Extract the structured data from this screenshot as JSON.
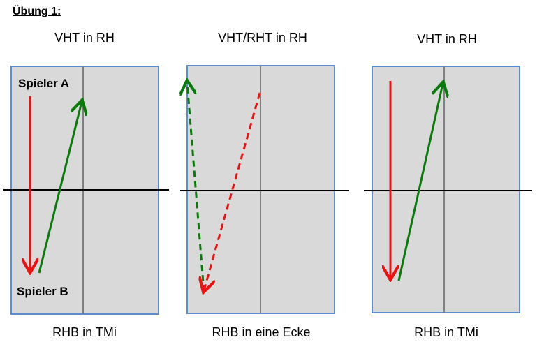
{
  "title": "Übung 1:",
  "tables": [
    {
      "top_label": "VHT in RH",
      "bottom_label": "RHB in TMi"
    },
    {
      "top_label": "VHT/RHT in RH",
      "bottom_label": "RHB in eine Ecke"
    },
    {
      "top_label": "VHT in RH",
      "bottom_label": "RHB in TMi"
    }
  ],
  "players": {
    "a": "Spieler A",
    "b": "Spieler B"
  },
  "colors": {
    "table_fill": "#d9d9d9",
    "table_border": "#5b8bd0",
    "center_line": "#7f7f7f",
    "net": "#000000",
    "red_arrow": "#ee1111",
    "green_arrow": "#0a7a0a"
  }
}
